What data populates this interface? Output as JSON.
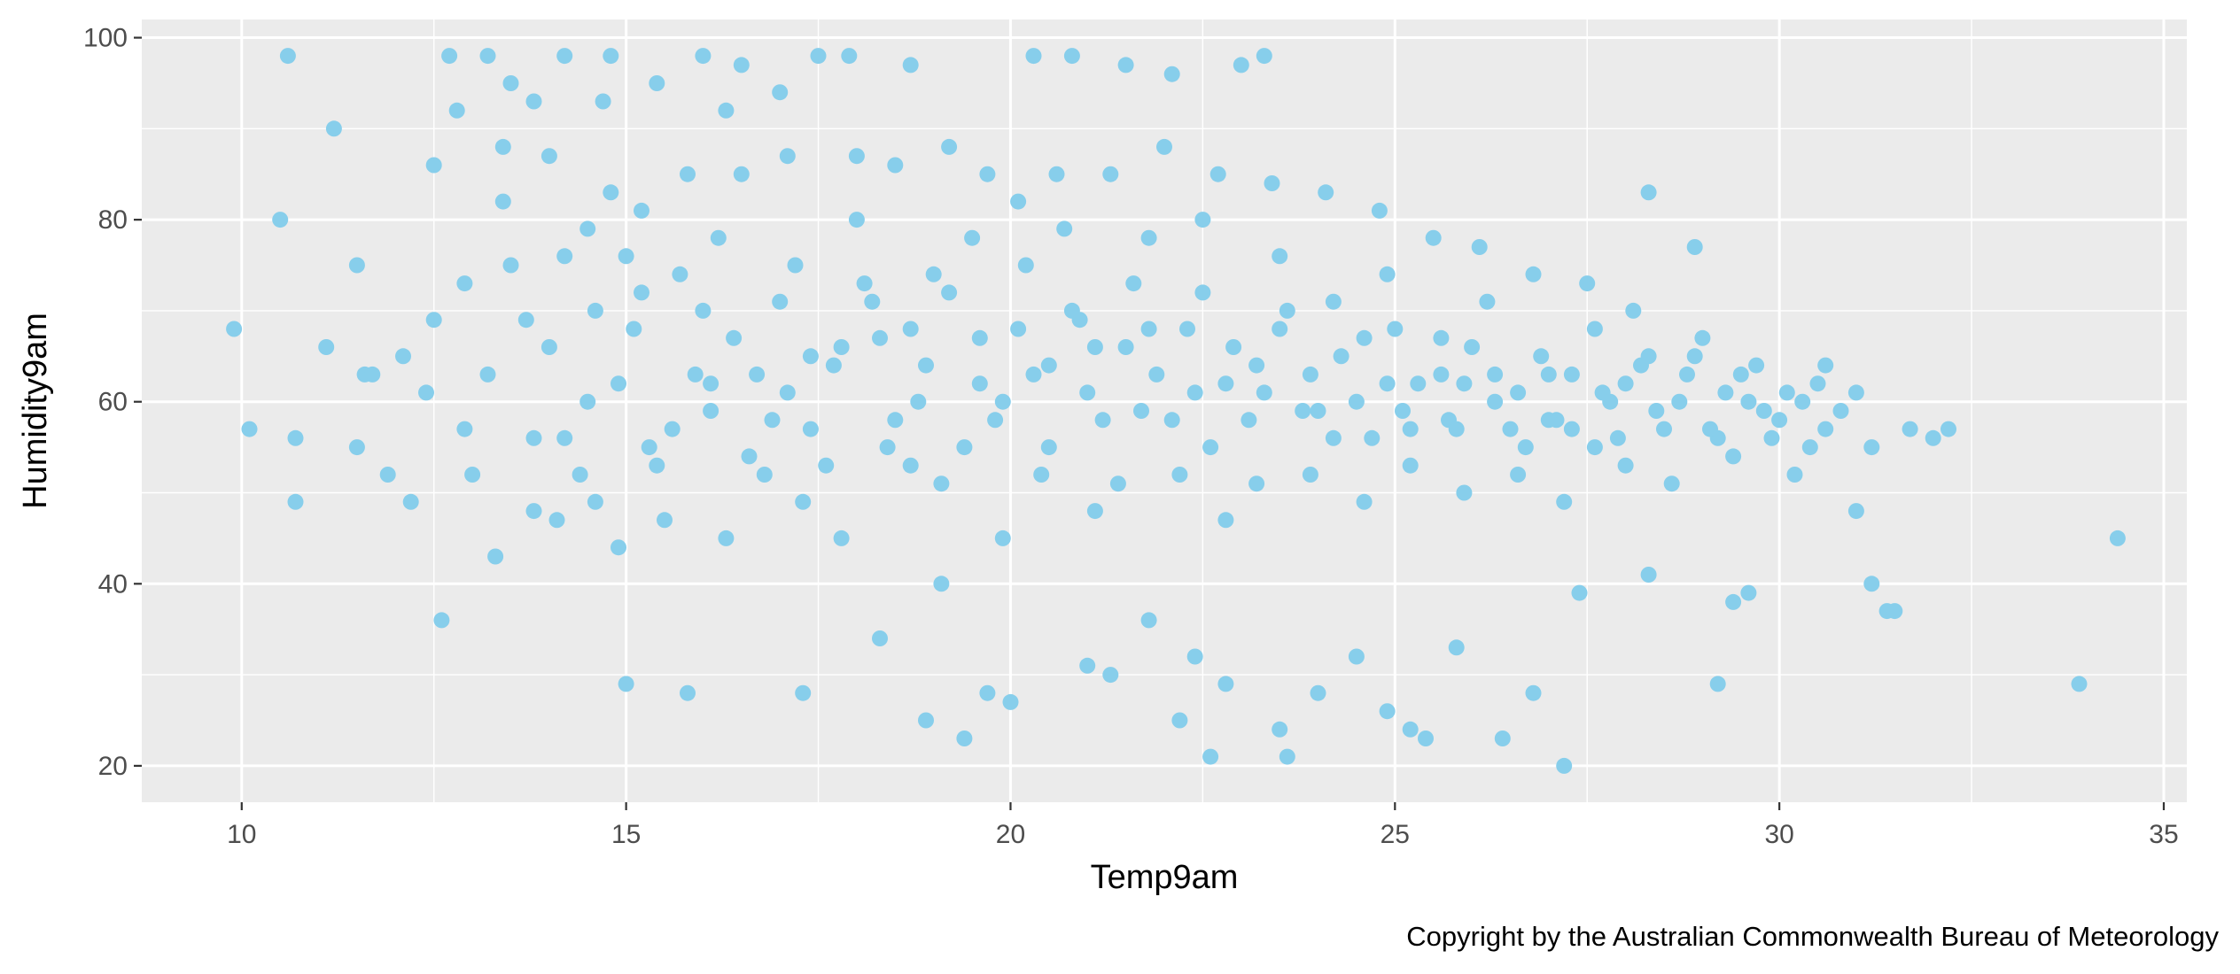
{
  "chart_data": {
    "type": "scatter",
    "xlabel": "Temp9am",
    "ylabel": "Humidity9am",
    "caption": "Copyright by the Australian Commonwealth Bureau of Meteorology",
    "xlim": [
      8.7,
      35.3
    ],
    "ylim": [
      16,
      102
    ],
    "x_ticks": [
      10,
      15,
      20,
      25,
      30,
      35
    ],
    "y_ticks": [
      20,
      40,
      60,
      80,
      100
    ],
    "x_tick_labels": [
      "10",
      "15",
      "20",
      "25",
      "30",
      "35"
    ],
    "y_tick_labels": [
      "20",
      "40",
      "60",
      "80",
      "100"
    ],
    "grid": true,
    "point_color": "#87CEEB",
    "panel_background": "#EBEBEB",
    "series": [
      {
        "points": [
          [
            9.9,
            68
          ],
          [
            10.1,
            57
          ],
          [
            10.5,
            80
          ],
          [
            10.6,
            98
          ],
          [
            10.7,
            56
          ],
          [
            10.7,
            49
          ],
          [
            11.1,
            66
          ],
          [
            11.2,
            90
          ],
          [
            11.5,
            75
          ],
          [
            11.5,
            55
          ],
          [
            11.6,
            63
          ],
          [
            11.7,
            63
          ],
          [
            11.9,
            52
          ],
          [
            12.1,
            65
          ],
          [
            12.2,
            49
          ],
          [
            12.4,
            61
          ],
          [
            12.5,
            86
          ],
          [
            12.5,
            69
          ],
          [
            12.6,
            36
          ],
          [
            12.7,
            98
          ],
          [
            12.8,
            92
          ],
          [
            12.9,
            73
          ],
          [
            13.2,
            98
          ],
          [
            13.4,
            88
          ],
          [
            13.5,
            95
          ],
          [
            13.8,
            93
          ],
          [
            14.0,
            87
          ],
          [
            14.2,
            98
          ],
          [
            14.5,
            79
          ],
          [
            14.7,
            93
          ],
          [
            14.8,
            98
          ],
          [
            15.0,
            29
          ],
          [
            15.2,
            81
          ],
          [
            15.4,
            95
          ],
          [
            15.8,
            28
          ],
          [
            16.0,
            98
          ],
          [
            16.3,
            92
          ],
          [
            16.5,
            97
          ],
          [
            17.0,
            94
          ],
          [
            17.3,
            28
          ],
          [
            17.5,
            98
          ],
          [
            17.9,
            98
          ],
          [
            18.3,
            34
          ],
          [
            18.7,
            97
          ],
          [
            18.9,
            25
          ],
          [
            19.1,
            40
          ],
          [
            19.4,
            23
          ],
          [
            19.7,
            28
          ],
          [
            20.0,
            27
          ],
          [
            20.3,
            98
          ],
          [
            20.8,
            98
          ],
          [
            21.0,
            31
          ],
          [
            21.3,
            30
          ],
          [
            21.5,
            97
          ],
          [
            21.8,
            36
          ],
          [
            22.1,
            96
          ],
          [
            22.2,
            25
          ],
          [
            22.4,
            32
          ],
          [
            22.6,
            21
          ],
          [
            22.8,
            29
          ],
          [
            23.0,
            97
          ],
          [
            23.3,
            98
          ],
          [
            23.5,
            24
          ],
          [
            23.6,
            21
          ],
          [
            24.0,
            28
          ],
          [
            24.5,
            32
          ],
          [
            24.9,
            26
          ],
          [
            25.2,
            24
          ],
          [
            25.4,
            23
          ],
          [
            25.8,
            33
          ],
          [
            26.4,
            23
          ],
          [
            26.8,
            28
          ],
          [
            27.2,
            20
          ],
          [
            27.4,
            39
          ],
          [
            28.3,
            41
          ],
          [
            28.3,
            83
          ],
          [
            28.9,
            77
          ],
          [
            29.2,
            29
          ],
          [
            29.4,
            38
          ],
          [
            29.6,
            39
          ],
          [
            30.6,
            64
          ],
          [
            31.0,
            48
          ],
          [
            31.2,
            40
          ],
          [
            31.4,
            37
          ],
          [
            31.5,
            37
          ],
          [
            31.7,
            57
          ],
          [
            32.0,
            56
          ],
          [
            32.2,
            57
          ],
          [
            33.9,
            29
          ],
          [
            34.4,
            45
          ],
          [
            13.2,
            63
          ],
          [
            13.8,
            48
          ],
          [
            14.2,
            56
          ],
          [
            14.6,
            70
          ],
          [
            14.9,
            62
          ],
          [
            15.3,
            55
          ],
          [
            15.7,
            74
          ],
          [
            16.1,
            59
          ],
          [
            16.4,
            67
          ],
          [
            16.8,
            52
          ],
          [
            17.1,
            61
          ],
          [
            17.4,
            57
          ],
          [
            17.8,
            66
          ],
          [
            18.2,
            71
          ],
          [
            18.5,
            58
          ],
          [
            18.9,
            64
          ],
          [
            19.2,
            72
          ],
          [
            19.6,
            67
          ],
          [
            19.9,
            60
          ],
          [
            20.2,
            75
          ],
          [
            20.5,
            64
          ],
          [
            20.9,
            69
          ],
          [
            21.2,
            58
          ],
          [
            21.6,
            73
          ],
          [
            21.9,
            63
          ],
          [
            22.3,
            68
          ],
          [
            22.6,
            55
          ],
          [
            22.9,
            66
          ],
          [
            23.3,
            61
          ],
          [
            23.6,
            70
          ],
          [
            24.0,
            59
          ],
          [
            24.3,
            65
          ],
          [
            24.7,
            56
          ],
          [
            25.0,
            68
          ],
          [
            25.3,
            62
          ],
          [
            25.7,
            58
          ],
          [
            26.0,
            66
          ],
          [
            26.3,
            60
          ],
          [
            26.7,
            55
          ],
          [
            27.0,
            63
          ],
          [
            27.3,
            57
          ],
          [
            27.7,
            61
          ],
          [
            28.0,
            53
          ],
          [
            28.4,
            59
          ],
          [
            28.8,
            63
          ],
          [
            29.2,
            56
          ],
          [
            29.6,
            60
          ],
          [
            30.0,
            58
          ],
          [
            30.4,
            55
          ],
          [
            31.0,
            61
          ],
          [
            13.5,
            75
          ],
          [
            14.0,
            66
          ],
          [
            14.4,
            52
          ],
          [
            14.8,
            83
          ],
          [
            15.1,
            68
          ],
          [
            15.5,
            47
          ],
          [
            15.9,
            63
          ],
          [
            16.2,
            78
          ],
          [
            16.6,
            54
          ],
          [
            17.0,
            71
          ],
          [
            17.3,
            49
          ],
          [
            17.7,
            64
          ],
          [
            18.0,
            80
          ],
          [
            18.4,
            55
          ],
          [
            18.7,
            68
          ],
          [
            19.1,
            51
          ],
          [
            19.5,
            78
          ],
          [
            19.8,
            58
          ],
          [
            20.1,
            82
          ],
          [
            20.5,
            55
          ],
          [
            20.8,
            70
          ],
          [
            21.1,
            48
          ],
          [
            21.5,
            66
          ],
          [
            21.8,
            78
          ],
          [
            22.2,
            52
          ],
          [
            22.5,
            72
          ],
          [
            22.8,
            47
          ],
          [
            23.2,
            64
          ],
          [
            23.5,
            76
          ],
          [
            23.9,
            52
          ],
          [
            24.2,
            71
          ],
          [
            24.6,
            49
          ],
          [
            24.9,
            74
          ],
          [
            25.2,
            53
          ],
          [
            25.6,
            67
          ],
          [
            25.9,
            50
          ],
          [
            26.2,
            71
          ],
          [
            26.6,
            52
          ],
          [
            26.9,
            65
          ],
          [
            27.2,
            49
          ],
          [
            27.6,
            68
          ],
          [
            27.9,
            56
          ],
          [
            28.2,
            64
          ],
          [
            28.6,
            51
          ],
          [
            29.0,
            67
          ],
          [
            29.4,
            54
          ],
          [
            29.8,
            59
          ],
          [
            30.2,
            52
          ],
          [
            30.6,
            57
          ],
          [
            31.2,
            55
          ],
          [
            12.9,
            57
          ],
          [
            13.3,
            43
          ],
          [
            13.7,
            69
          ],
          [
            14.1,
            47
          ],
          [
            14.5,
            60
          ],
          [
            14.9,
            44
          ],
          [
            15.2,
            72
          ],
          [
            15.6,
            57
          ],
          [
            16.0,
            70
          ],
          [
            16.3,
            45
          ],
          [
            16.7,
            63
          ],
          [
            17.1,
            87
          ],
          [
            17.4,
            65
          ],
          [
            17.8,
            45
          ],
          [
            18.1,
            73
          ],
          [
            18.5,
            86
          ],
          [
            18.8,
            60
          ],
          [
            19.2,
            88
          ],
          [
            19.6,
            62
          ],
          [
            19.9,
            45
          ],
          [
            20.3,
            63
          ],
          [
            20.6,
            85
          ],
          [
            21.0,
            61
          ],
          [
            21.3,
            85
          ],
          [
            21.7,
            59
          ],
          [
            22.0,
            88
          ],
          [
            22.4,
            61
          ],
          [
            22.7,
            85
          ],
          [
            23.1,
            58
          ],
          [
            23.4,
            84
          ],
          [
            23.8,
            59
          ],
          [
            24.1,
            83
          ],
          [
            24.5,
            60
          ],
          [
            24.8,
            81
          ],
          [
            25.1,
            59
          ],
          [
            25.5,
            78
          ],
          [
            25.8,
            57
          ],
          [
            26.1,
            77
          ],
          [
            26.5,
            57
          ],
          [
            26.8,
            74
          ],
          [
            27.1,
            58
          ],
          [
            27.5,
            73
          ],
          [
            27.8,
            60
          ],
          [
            28.1,
            70
          ],
          [
            28.5,
            57
          ],
          [
            28.9,
            65
          ],
          [
            29.3,
            61
          ],
          [
            29.7,
            64
          ],
          [
            30.1,
            61
          ],
          [
            30.5,
            62
          ],
          [
            13.0,
            52
          ],
          [
            13.4,
            82
          ],
          [
            13.8,
            56
          ],
          [
            14.2,
            76
          ],
          [
            14.6,
            49
          ],
          [
            15.0,
            76
          ],
          [
            15.4,
            53
          ],
          [
            15.8,
            85
          ],
          [
            16.1,
            62
          ],
          [
            16.5,
            85
          ],
          [
            16.9,
            58
          ],
          [
            17.2,
            75
          ],
          [
            17.6,
            53
          ],
          [
            18.0,
            87
          ],
          [
            18.3,
            67
          ],
          [
            18.7,
            53
          ],
          [
            19.0,
            74
          ],
          [
            19.4,
            55
          ],
          [
            19.7,
            85
          ],
          [
            20.1,
            68
          ],
          [
            20.4,
            52
          ],
          [
            20.7,
            79
          ],
          [
            21.1,
            66
          ],
          [
            21.4,
            51
          ],
          [
            21.8,
            68
          ],
          [
            22.1,
            58
          ],
          [
            22.5,
            80
          ],
          [
            22.8,
            62
          ],
          [
            23.2,
            51
          ],
          [
            23.5,
            68
          ],
          [
            23.9,
            63
          ],
          [
            24.2,
            56
          ],
          [
            24.6,
            67
          ],
          [
            24.9,
            62
          ],
          [
            25.2,
            57
          ],
          [
            25.6,
            63
          ],
          [
            25.9,
            62
          ],
          [
            26.3,
            63
          ],
          [
            26.6,
            61
          ],
          [
            27.0,
            58
          ],
          [
            27.3,
            63
          ],
          [
            27.6,
            55
          ],
          [
            28.0,
            62
          ],
          [
            28.3,
            65
          ],
          [
            28.7,
            60
          ],
          [
            29.1,
            57
          ],
          [
            29.5,
            63
          ],
          [
            29.9,
            56
          ],
          [
            30.3,
            60
          ],
          [
            30.8,
            59
          ]
        ]
      }
    ]
  }
}
